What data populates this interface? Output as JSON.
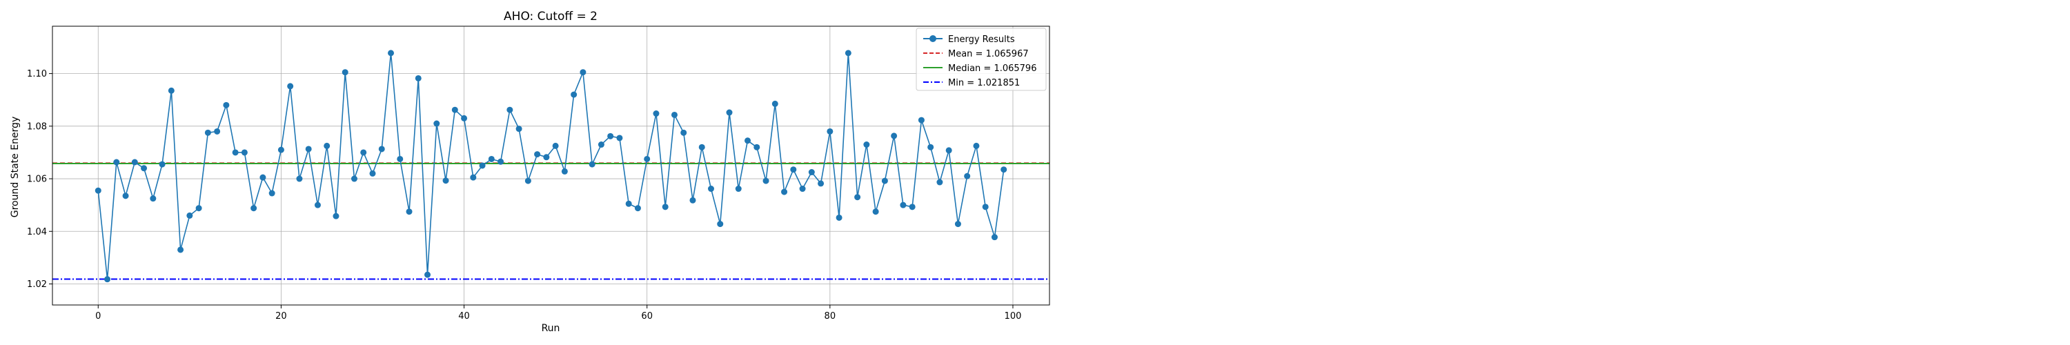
{
  "chart_data": {
    "type": "line",
    "title": "AHO: Cutoff = 2",
    "xlabel": "Run",
    "ylabel": "Ground State Energy",
    "xlim": [
      -5,
      104
    ],
    "ylim": [
      1.012,
      1.118
    ],
    "xticks": [
      0,
      20,
      40,
      60,
      80,
      100
    ],
    "yticks": [
      1.02,
      1.04,
      1.06,
      1.08,
      1.1
    ],
    "grid": true,
    "legend_position": "top-right",
    "series": [
      {
        "name": "Energy Results",
        "color": "#1f77b4",
        "marker": "circle",
        "x": [
          0,
          1,
          2,
          3,
          4,
          5,
          6,
          7,
          8,
          9,
          10,
          11,
          12,
          13,
          14,
          15,
          16,
          17,
          18,
          19,
          20,
          21,
          22,
          23,
          24,
          25,
          26,
          27,
          28,
          29,
          30,
          31,
          32,
          33,
          34,
          35,
          36,
          37,
          38,
          39,
          40,
          41,
          42,
          43,
          44,
          45,
          46,
          47,
          48,
          49,
          50,
          51,
          52,
          53,
          54,
          55,
          56,
          57,
          58,
          59,
          60,
          61,
          62,
          63,
          64,
          65,
          66,
          67,
          68,
          69,
          70,
          71,
          72,
          73,
          74,
          75,
          76,
          77,
          78,
          79,
          80,
          81,
          82,
          83,
          84,
          85,
          86,
          87,
          88,
          89,
          90,
          91,
          92,
          93,
          94,
          95,
          96,
          97,
          98,
          99
        ],
        "values": [
          1.0555,
          1.0218,
          1.0663,
          1.0535,
          1.0663,
          1.064,
          1.0525,
          1.0655,
          1.0935,
          1.033,
          1.046,
          1.0488,
          1.0775,
          1.078,
          1.088,
          1.07,
          1.07,
          1.0488,
          1.0605,
          1.0545,
          1.071,
          1.0952,
          1.06,
          1.0713,
          1.05,
          1.0725,
          1.0458,
          1.1005,
          1.06,
          1.07,
          1.062,
          1.0713,
          1.1078,
          1.0675,
          1.0475,
          1.0982,
          1.0235,
          1.081,
          1.0593,
          1.0862,
          1.083,
          1.0605,
          1.065,
          1.0675,
          1.0665,
          1.0862,
          1.079,
          1.0592,
          1.0693,
          1.0682,
          1.0725,
          1.0628,
          1.092,
          1.1005,
          1.0655,
          1.073,
          1.0762,
          1.0755,
          1.0505,
          1.0488,
          1.0675,
          1.0848,
          1.0493,
          1.0843,
          1.0775,
          1.0518,
          1.072,
          1.0562,
          1.0428,
          1.0852,
          1.0562,
          1.0745,
          1.072,
          1.0592,
          1.0885,
          1.055,
          1.0635,
          1.0562,
          1.0625,
          1.0582,
          1.078,
          1.0452,
          1.1078,
          1.053,
          1.073,
          1.0475,
          1.0592,
          1.0763,
          1.05,
          1.0493,
          1.0823,
          1.072,
          1.0587,
          1.0708,
          1.0428,
          1.061,
          1.0725,
          1.0493,
          1.0378,
          1.0635
        ]
      },
      {
        "name": "Mean = 1.065967",
        "value": 1.065967,
        "color": "#d62728",
        "style": "dashed"
      },
      {
        "name": "Median = 1.065796",
        "value": 1.065796,
        "color": "#2ca02c",
        "style": "solid"
      },
      {
        "name": "Min = 1.021851",
        "value": 1.021851,
        "color": "#0000ff",
        "style": "dashdot"
      }
    ]
  }
}
